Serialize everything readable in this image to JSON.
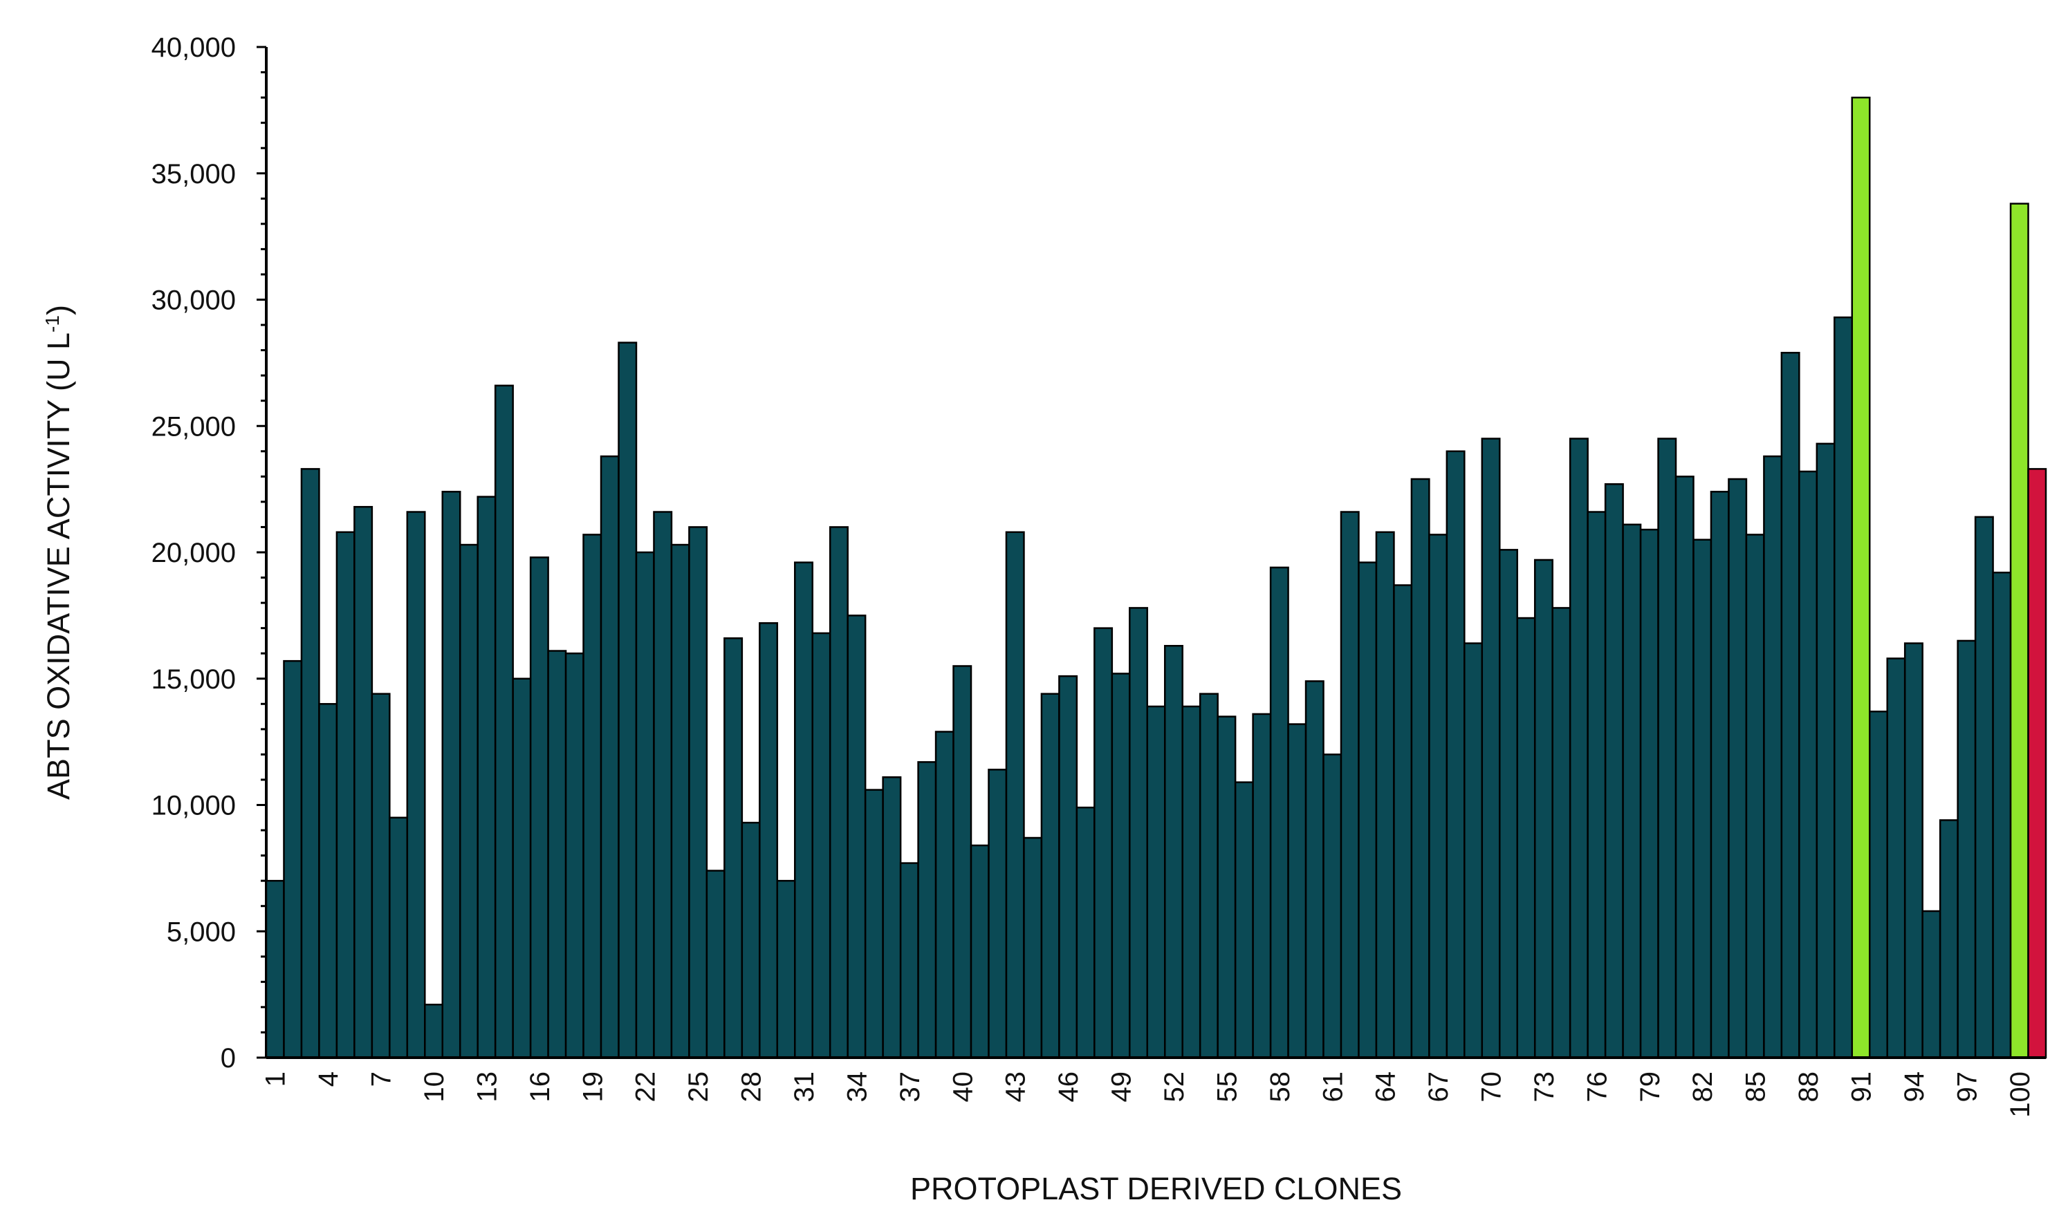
{
  "chart_data": {
    "type": "bar",
    "title": "",
    "xlabel": "PROTOPLAST DERIVED CLONES",
    "ylabel": "ABTS OXIDATIVE ACTIVITY (U L",
    "ylabel_superscript": "-1",
    "ylabel_suffix": ")",
    "ylim": [
      0,
      40000
    ],
    "y_ticks": [
      0,
      5000,
      10000,
      15000,
      20000,
      25000,
      30000,
      35000,
      40000
    ],
    "y_tick_labels": [
      "0",
      "5,000",
      "10,000",
      "15,000",
      "20,000",
      "25,000",
      "30,000",
      "35,000",
      "40,000"
    ],
    "grid": false,
    "legend": "none",
    "bar_color": "#0b4a55",
    "highlight_colors": {
      "lime": "#8ee52a",
      "crimson": "#d2133d"
    },
    "categories": [
      "1",
      "2",
      "3",
      "4",
      "5",
      "6",
      "7",
      "8",
      "9",
      "10",
      "11",
      "12",
      "13",
      "14",
      "15",
      "16",
      "17",
      "18",
      "19",
      "20",
      "21",
      "22",
      "23",
      "24",
      "25",
      "26",
      "27",
      "28",
      "29",
      "30",
      "31",
      "32",
      "33",
      "34",
      "35",
      "36",
      "37",
      "38",
      "39",
      "40",
      "41",
      "42",
      "43",
      "44",
      "45",
      "46",
      "47",
      "48",
      "49",
      "50",
      "51",
      "52",
      "53",
      "54",
      "55",
      "56",
      "57",
      "58",
      "59",
      "60",
      "61",
      "62",
      "63",
      "64",
      "65",
      "66",
      "67",
      "68",
      "69",
      "70",
      "71",
      "72",
      "73",
      "74",
      "75",
      "76",
      "77",
      "78",
      "79",
      "80",
      "81",
      "82",
      "83",
      "84",
      "85",
      "86",
      "87",
      "88",
      "89",
      "90",
      "91",
      "92",
      "93",
      "94",
      "95",
      "96",
      "97",
      "98",
      "99",
      "100",
      "101"
    ],
    "x_tick_labels": [
      "1",
      "4",
      "7",
      "10",
      "13",
      "16",
      "19",
      "22",
      "25",
      "28",
      "31",
      "34",
      "37",
      "40",
      "43",
      "46",
      "49",
      "52",
      "55",
      "58",
      "61",
      "64",
      "67",
      "70",
      "73",
      "76",
      "79",
      "82",
      "85",
      "88",
      "91",
      "94",
      "97",
      "100"
    ],
    "values": [
      7000,
      15700,
      23300,
      14000,
      20800,
      21800,
      14400,
      9500,
      21600,
      2100,
      22400,
      20300,
      22200,
      26600,
      15000,
      19800,
      16100,
      16000,
      20700,
      23800,
      28300,
      20000,
      21600,
      20300,
      21000,
      7400,
      16600,
      9300,
      17200,
      7000,
      19600,
      16800,
      21000,
      17500,
      10600,
      11100,
      7700,
      11700,
      12900,
      15500,
      8400,
      11400,
      20800,
      8700,
      14400,
      15100,
      9900,
      17000,
      15200,
      17800,
      13900,
      16300,
      13900,
      14400,
      13500,
      10900,
      13600,
      19400,
      13200,
      14900,
      12000,
      21600,
      19600,
      20800,
      18700,
      22900,
      20700,
      24000,
      16400,
      24500,
      20100,
      17400,
      19700,
      17800,
      24500,
      21600,
      22700,
      21100,
      20900,
      24500,
      23000,
      20500,
      22400,
      22900,
      20700,
      23800,
      27900,
      23200,
      24300,
      29300,
      38000,
      13700,
      15800,
      16400,
      5800,
      9400,
      16500,
      21400,
      19200,
      33800,
      23300
    ],
    "bar_highlight": {
      "91": "lime",
      "100": "lime",
      "101": "crimson"
    }
  }
}
